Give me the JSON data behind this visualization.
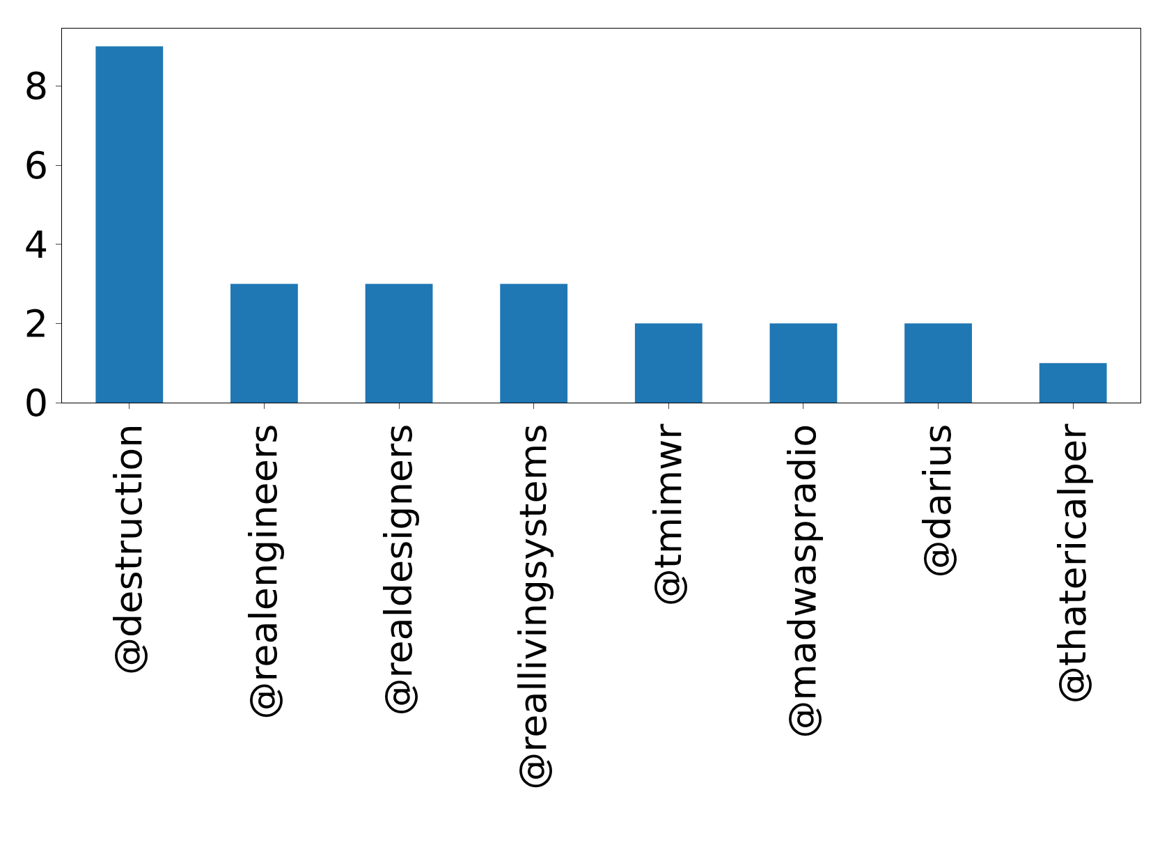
{
  "chart_data": {
    "type": "bar",
    "categories": [
      "@destruction",
      "@realengineers",
      "@realdesigners",
      "@reallivingsystems",
      "@tmimwr",
      "@madwaspradio",
      "@darius",
      "@thatericalper"
    ],
    "values": [
      9,
      3,
      3,
      3,
      2,
      2,
      2,
      1
    ],
    "color": "#1f77b4",
    "ylim": [
      0,
      9.45
    ],
    "yticks": [
      0,
      2,
      4,
      6,
      8
    ],
    "legend": false
  }
}
